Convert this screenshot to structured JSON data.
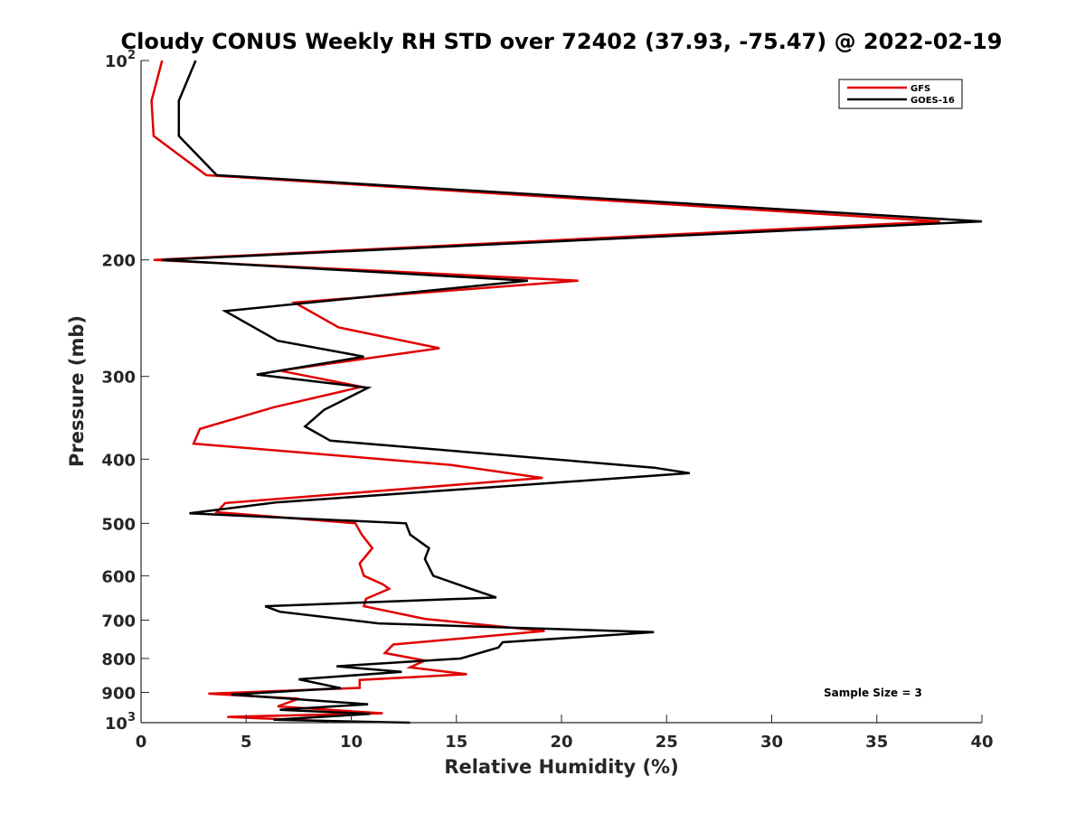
{
  "chart_data": {
    "type": "line",
    "title": "Cloudy CONUS Weekly RH STD over 72402 (37.93, -75.47) @ 2022-02-19",
    "xlabel": "Relative Humidity (%)",
    "ylabel": "Pressure (mb)",
    "xlim": [
      0,
      40
    ],
    "ylim": [
      100,
      1000
    ],
    "y_scale": "log",
    "y_reversed": true,
    "x_ticks": [
      0,
      5,
      10,
      15,
      20,
      25,
      30,
      35,
      40
    ],
    "x_tick_labels": [
      "0",
      "5",
      "10",
      "15",
      "20",
      "25",
      "30",
      "35",
      "40"
    ],
    "y_ticks": [
      100,
      200,
      300,
      400,
      500,
      600,
      700,
      800,
      900,
      1000
    ],
    "y_tick_labels": [
      "10^2",
      "200",
      "300",
      "400",
      "500",
      "600",
      "700",
      "800",
      "900",
      "10^3"
    ],
    "grid": false,
    "legend_position": "top-right",
    "annotation": "Sample Size = 3",
    "series": [
      {
        "name": "GFS",
        "color": "#e00000",
        "points": [
          [
            1.0,
            100
          ],
          [
            0.5,
            115
          ],
          [
            0.6,
            130
          ],
          [
            3.1,
            149
          ],
          [
            38.0,
            175
          ],
          [
            0.6,
            200
          ],
          [
            20.8,
            215
          ],
          [
            7.3,
            232
          ],
          [
            9.4,
            253
          ],
          [
            14.2,
            272
          ],
          [
            6.6,
            294
          ],
          [
            10.5,
            311
          ],
          [
            6.3,
            334
          ],
          [
            2.8,
            360
          ],
          [
            2.5,
            379
          ],
          [
            14.7,
            408
          ],
          [
            19.1,
            427
          ],
          [
            4.0,
            466
          ],
          [
            3.6,
            481
          ],
          [
            10.2,
            500
          ],
          [
            10.5,
            520
          ],
          [
            11.0,
            545
          ],
          [
            10.4,
            575
          ],
          [
            10.6,
            600
          ],
          [
            11.5,
            618
          ],
          [
            11.8,
            628
          ],
          [
            10.7,
            650
          ],
          [
            10.6,
            667
          ],
          [
            13.5,
            697
          ],
          [
            19.2,
            727
          ],
          [
            12.0,
            762
          ],
          [
            11.6,
            785
          ],
          [
            13.5,
            806
          ],
          [
            12.8,
            825
          ],
          [
            15.5,
            845
          ],
          [
            10.4,
            862
          ],
          [
            10.4,
            886
          ],
          [
            3.2,
            904
          ],
          [
            7.5,
            920
          ],
          [
            6.5,
            945
          ],
          [
            11.5,
            968
          ],
          [
            4.1,
            980
          ],
          [
            8.9,
            995
          ]
        ]
      },
      {
        "name": "GOES-16",
        "color": "#000000",
        "points": [
          [
            2.6,
            100
          ],
          [
            1.8,
            115
          ],
          [
            1.8,
            130
          ],
          [
            3.6,
            149
          ],
          [
            40.0,
            175
          ],
          [
            1.0,
            200
          ],
          [
            18.4,
            215
          ],
          [
            4.0,
            239
          ],
          [
            6.5,
            265
          ],
          [
            10.6,
            280
          ],
          [
            5.5,
            298
          ],
          [
            10.8,
            312
          ],
          [
            8.7,
            337
          ],
          [
            7.8,
            357
          ],
          [
            9.0,
            375
          ],
          [
            24.4,
            412
          ],
          [
            26.1,
            420
          ],
          [
            6.4,
            465
          ],
          [
            2.3,
            483
          ],
          [
            12.6,
            500
          ],
          [
            12.8,
            520
          ],
          [
            13.7,
            545
          ],
          [
            13.5,
            566
          ],
          [
            13.9,
            600
          ],
          [
            15.5,
            625
          ],
          [
            16.9,
            647
          ],
          [
            5.9,
            667
          ],
          [
            6.6,
            680
          ],
          [
            11.3,
            708
          ],
          [
            24.4,
            730
          ],
          [
            17.2,
            756
          ],
          [
            17.0,
            770
          ],
          [
            15.2,
            800
          ],
          [
            9.3,
            822
          ],
          [
            12.4,
            838
          ],
          [
            7.5,
            860
          ],
          [
            9.5,
            887
          ],
          [
            4.3,
            907
          ],
          [
            10.8,
            938
          ],
          [
            6.6,
            956
          ],
          [
            10.9,
            970
          ],
          [
            6.3,
            990
          ],
          [
            12.8,
            1000
          ]
        ]
      }
    ]
  }
}
